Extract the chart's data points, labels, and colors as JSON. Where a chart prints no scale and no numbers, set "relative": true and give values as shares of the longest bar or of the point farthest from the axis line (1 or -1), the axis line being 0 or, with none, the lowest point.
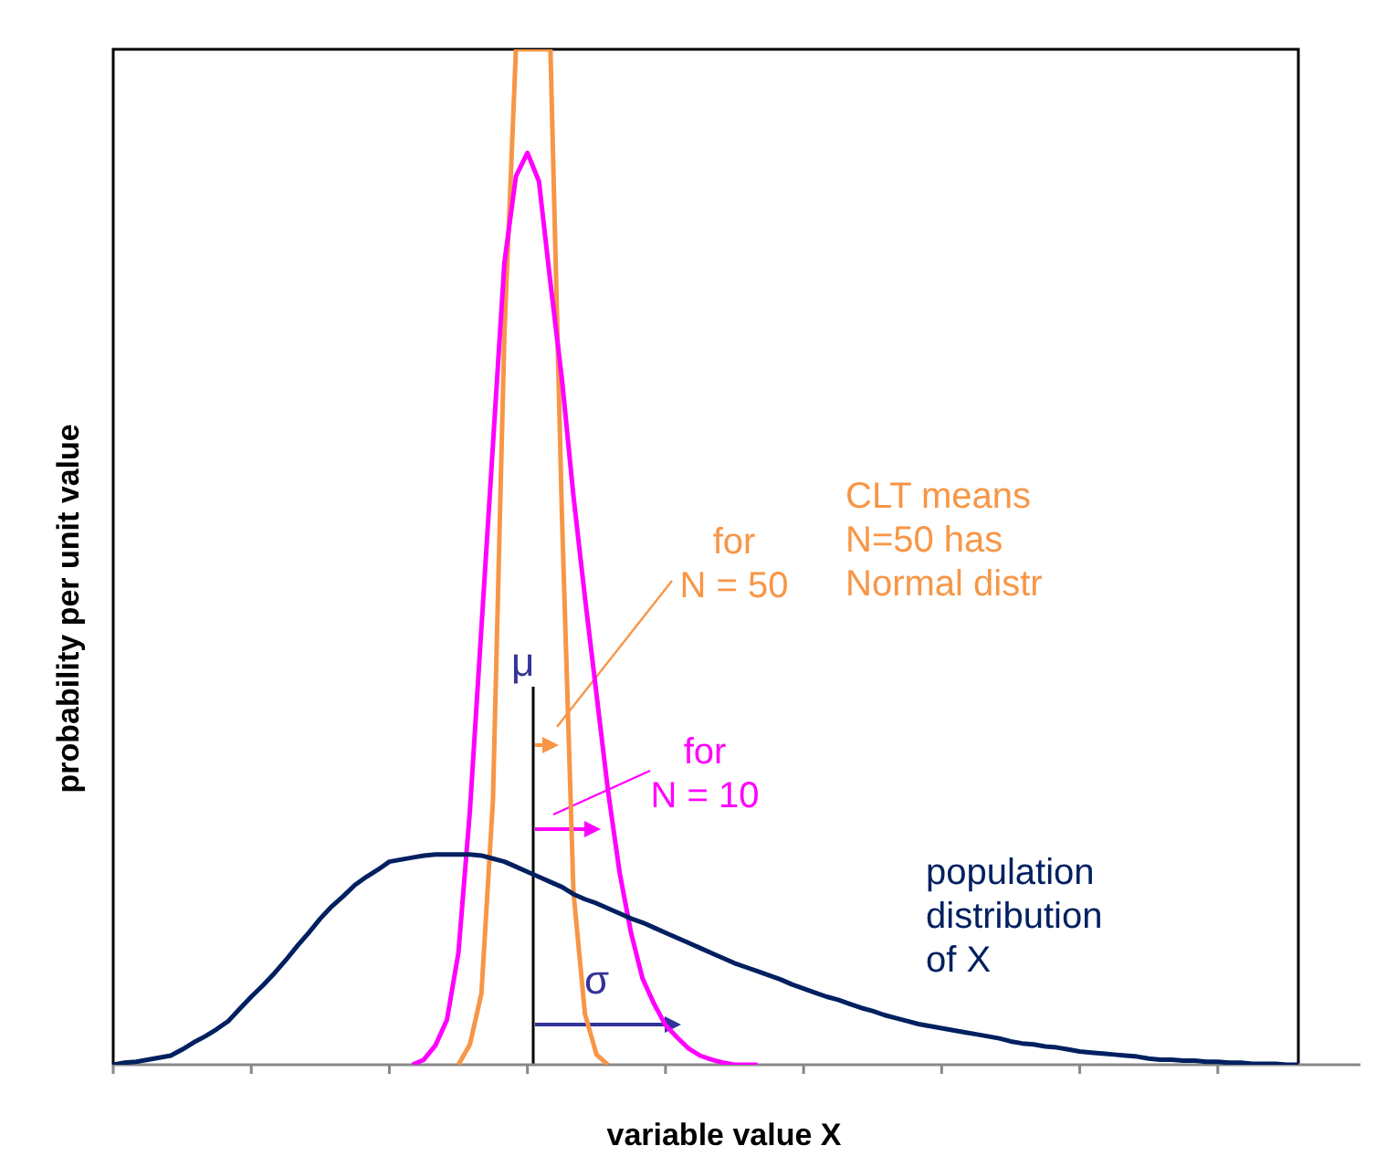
{
  "chart_data": {
    "type": "line",
    "relative": true,
    "legend": false,
    "ylabel": "probability per unit value",
    "xlabel": "variable value X",
    "annotations": [
      "CLT means\nN=50 has\nNormal distr",
      "μ",
      "σ"
    ],
    "categories": [
      null,
      null,
      null,
      null,
      null,
      null,
      null,
      null,
      null,
      null,
      null,
      null,
      null,
      null,
      null,
      null,
      null,
      null,
      null,
      null,
      null,
      null,
      null,
      null,
      null,
      null,
      null,
      null,
      null,
      null,
      null,
      null,
      null,
      null,
      null,
      null,
      null,
      null,
      null,
      null,
      null,
      null,
      null,
      null,
      null,
      null,
      null,
      null,
      null,
      null,
      null,
      null,
      null,
      null,
      null,
      null,
      null,
      null,
      null,
      null,
      null,
      null,
      null,
      null,
      null,
      null,
      null,
      null,
      null,
      null,
      null,
      null,
      null,
      null,
      null,
      null,
      null,
      null,
      null,
      null,
      null,
      null,
      null,
      null,
      null,
      null,
      null,
      null,
      null,
      null,
      null,
      null,
      null,
      null,
      null,
      null,
      null,
      null,
      null,
      null,
      null,
      null,
      null,
      null
    ],
    "series": [
      {
        "name": "population\ndistribution\nof X",
        "color": "#002060",
        "values": [
          0,
          0.002,
          0.003,
          0.005,
          0.007,
          0.009,
          0.015,
          0.022,
          0.028,
          0.035,
          0.043,
          0.055,
          0.067,
          0.078,
          0.09,
          0.103,
          0.117,
          0.13,
          0.144,
          0.156,
          0.166,
          0.177,
          0.185,
          0.192,
          0.2,
          0.202,
          0.204,
          0.206,
          0.207,
          0.207,
          0.207,
          0.207,
          0.206,
          0.203,
          0.2,
          0.195,
          0.19,
          0.185,
          0.18,
          0.175,
          0.168,
          0.163,
          0.159,
          0.154,
          0.149,
          0.144,
          0.14,
          0.135,
          0.13,
          0.125,
          0.12,
          0.115,
          0.11,
          0.105,
          0.1,
          0.096,
          0.092,
          0.088,
          0.084,
          0.079,
          0.075,
          0.071,
          0.067,
          0.064,
          0.06,
          0.056,
          0.053,
          0.049,
          0.046,
          0.043,
          0.04,
          0.038,
          0.036,
          0.034,
          0.032,
          0.03,
          0.028,
          0.026,
          0.023,
          0.021,
          0.02,
          0.018,
          0.017,
          0.015,
          0.013,
          0.012,
          0.011,
          0.01,
          0.009,
          0.008,
          0.006,
          0.005,
          0.005,
          0.004,
          0.004,
          0.003,
          0.003,
          0.002,
          0.002,
          0.001,
          0.001,
          0.001,
          0,
          0
        ]
      },
      {
        "name": "for\nN = 10",
        "color": "#ff00ff",
        "values": [
          null,
          null,
          null,
          null,
          null,
          null,
          null,
          null,
          null,
          null,
          null,
          null,
          null,
          null,
          null,
          null,
          null,
          null,
          null,
          null,
          null,
          null,
          null,
          null,
          null,
          null,
          0,
          0.005,
          0.019,
          0.044,
          0.11,
          0.25,
          0.43,
          0.61,
          0.79,
          0.875,
          0.898,
          0.87,
          0.77,
          0.675,
          0.56,
          0.46,
          0.365,
          0.27,
          0.19,
          0.13,
          0.085,
          0.06,
          0.039,
          0.027,
          0.016,
          0.009,
          0.005,
          0.002,
          0,
          0,
          0,
          null,
          null,
          null,
          null,
          null,
          null,
          null,
          null,
          null,
          null,
          null,
          null,
          null,
          null,
          null,
          null,
          null,
          null,
          null,
          null,
          null,
          null,
          null,
          null,
          null,
          null,
          null,
          null,
          null,
          null,
          null,
          null,
          null,
          null,
          null,
          null,
          null,
          null,
          null,
          null,
          null,
          null,
          null,
          null,
          null,
          null,
          null
        ]
      },
      {
        "name": "for\nN = 50",
        "color": "#f79646",
        "values": [
          null,
          null,
          null,
          null,
          null,
          null,
          null,
          null,
          null,
          null,
          null,
          null,
          null,
          null,
          null,
          null,
          null,
          null,
          null,
          null,
          null,
          null,
          null,
          null,
          null,
          null,
          null,
          null,
          null,
          null,
          0,
          0.02,
          0.07,
          0.26,
          0.72,
          1,
          1,
          1,
          1,
          0.54,
          0.17,
          0.05,
          0.01,
          0,
          null,
          null,
          null,
          null,
          null,
          null,
          null,
          null,
          null,
          null,
          null,
          null,
          null,
          null,
          null,
          null,
          null,
          null,
          null,
          null,
          null,
          null,
          null,
          null,
          null,
          null,
          null,
          null,
          null,
          null,
          null,
          null,
          null,
          null,
          null,
          null,
          null,
          null,
          null,
          null,
          null,
          null,
          null,
          null,
          null,
          null,
          null,
          null,
          null,
          null,
          null,
          null,
          null,
          null,
          null,
          null,
          null,
          null,
          null,
          null
        ]
      }
    ]
  }
}
